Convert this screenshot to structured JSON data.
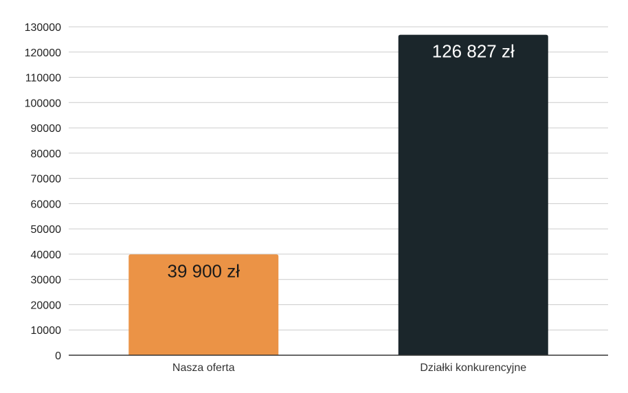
{
  "chart_data": {
    "type": "bar",
    "title": "",
    "xlabel": "",
    "ylabel": "",
    "categories": [
      "Nasza oferta",
      "Działki konkurencyjne"
    ],
    "values": [
      39900,
      126827
    ],
    "data_labels": [
      "39 900 zł",
      "126 827 zł"
    ],
    "bar_colors": [
      "#eb9346",
      "#1b262b"
    ],
    "data_label_colors": [
      "#1a1a1a",
      "#ffffff"
    ],
    "ylim": [
      0,
      130000
    ],
    "yticks": [
      "0",
      "10000",
      "20000",
      "30000",
      "40000",
      "50000",
      "60000",
      "70000",
      "80000",
      "90000",
      "100000",
      "110000",
      "120000",
      "130000"
    ],
    "grid": true,
    "legend": "none"
  }
}
